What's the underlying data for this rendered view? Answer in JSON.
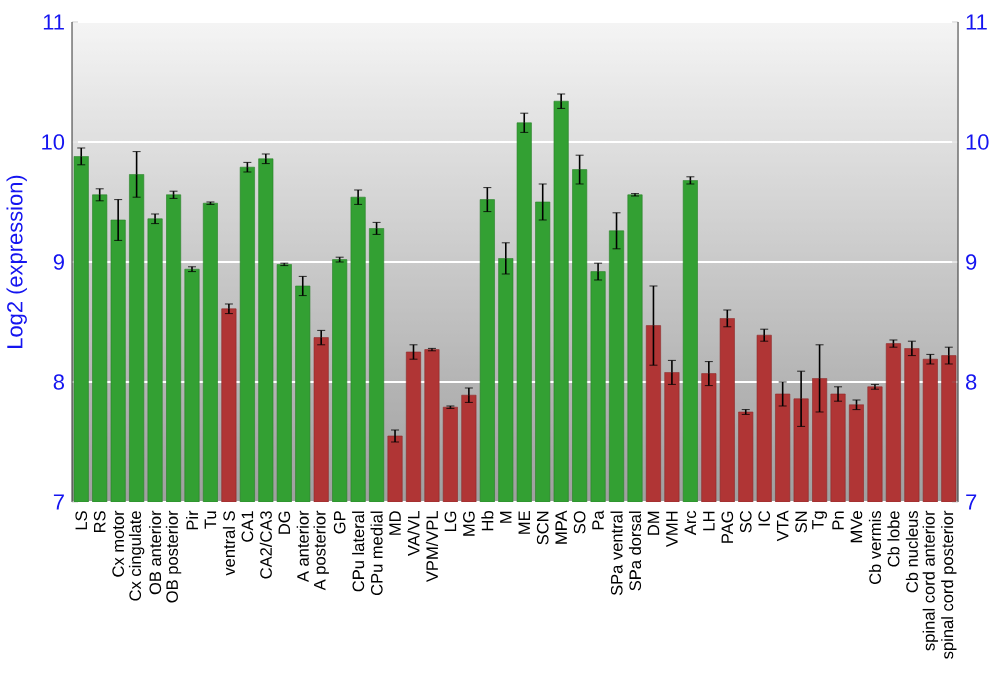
{
  "chart_data": {
    "type": "bar",
    "ylabel": "Log2 (expression)",
    "categories": [
      "LS",
      "RS",
      "Cx motor",
      "Cx cingulate",
      "OB anterior",
      "OB posterior",
      "Pir",
      "Tu",
      "ventral S",
      "CA1",
      "CA2/CA3",
      "DG",
      "A anterior",
      "A posterior",
      "GP",
      "CPu lateral",
      "CPu medial",
      "MD",
      "VA/VL",
      "VPM/VPL",
      "LG",
      "MG",
      "Hb",
      "M",
      "ME",
      "SCN",
      "MPA",
      "SO",
      "Pa",
      "SPa ventral",
      "SPa dorsal",
      "DM",
      "VMH",
      "Arc",
      "LH",
      "PAG",
      "SC",
      "IC",
      "VTA",
      "SN",
      "Tg",
      "Pn",
      "MVe",
      "Cb vermis",
      "Cb lobe",
      "Cb nucleus",
      "spinal cord anterior",
      "spinal cord posterior"
    ],
    "values": [
      9.88,
      9.56,
      9.35,
      9.73,
      9.36,
      9.56,
      8.94,
      9.49,
      8.61,
      9.79,
      9.86,
      8.98,
      8.8,
      8.37,
      9.02,
      9.54,
      9.28,
      7.55,
      8.25,
      8.27,
      7.79,
      7.89,
      9.52,
      9.03,
      10.16,
      9.5,
      10.34,
      9.77,
      8.92,
      9.26,
      9.56,
      8.47,
      8.08,
      9.68,
      8.07,
      8.53,
      7.75,
      8.39,
      7.9,
      7.86,
      8.03,
      7.9,
      7.81,
      7.96,
      8.32,
      8.28,
      8.19,
      8.22
    ],
    "errors": [
      0.07,
      0.05,
      0.17,
      0.19,
      0.04,
      0.03,
      0.02,
      0.01,
      0.04,
      0.04,
      0.04,
      0.01,
      0.08,
      0.06,
      0.02,
      0.06,
      0.05,
      0.05,
      0.06,
      0.01,
      0.01,
      0.06,
      0.1,
      0.13,
      0.08,
      0.15,
      0.06,
      0.12,
      0.07,
      0.15,
      0.01,
      0.33,
      0.1,
      0.03,
      0.1,
      0.07,
      0.02,
      0.05,
      0.1,
      0.23,
      0.28,
      0.06,
      0.04,
      0.02,
      0.03,
      0.06,
      0.04,
      0.07
    ],
    "colors": [
      "#33a033",
      "#33a033",
      "#33a033",
      "#33a033",
      "#33a033",
      "#33a033",
      "#33a033",
      "#33a033",
      "#b03535",
      "#33a033",
      "#33a033",
      "#33a033",
      "#33a033",
      "#b03535",
      "#33a033",
      "#33a033",
      "#33a033",
      "#b03535",
      "#b03535",
      "#b03535",
      "#b03535",
      "#b03535",
      "#33a033",
      "#33a033",
      "#33a033",
      "#33a033",
      "#33a033",
      "#33a033",
      "#33a033",
      "#33a033",
      "#33a033",
      "#b03535",
      "#b03535",
      "#33a033",
      "#b03535",
      "#b03535",
      "#b03535",
      "#b03535",
      "#b03535",
      "#b03535",
      "#b03535",
      "#b03535",
      "#b03535",
      "#b03535",
      "#b03535",
      "#b03535",
      "#b03535",
      "#b03535"
    ],
    "ylim": [
      7,
      11
    ],
    "yticks": [
      7,
      8,
      9,
      10,
      11
    ],
    "y2lim": [
      7,
      11
    ],
    "y2ticks": [
      7,
      8,
      9,
      10,
      11
    ],
    "grid": "y"
  }
}
